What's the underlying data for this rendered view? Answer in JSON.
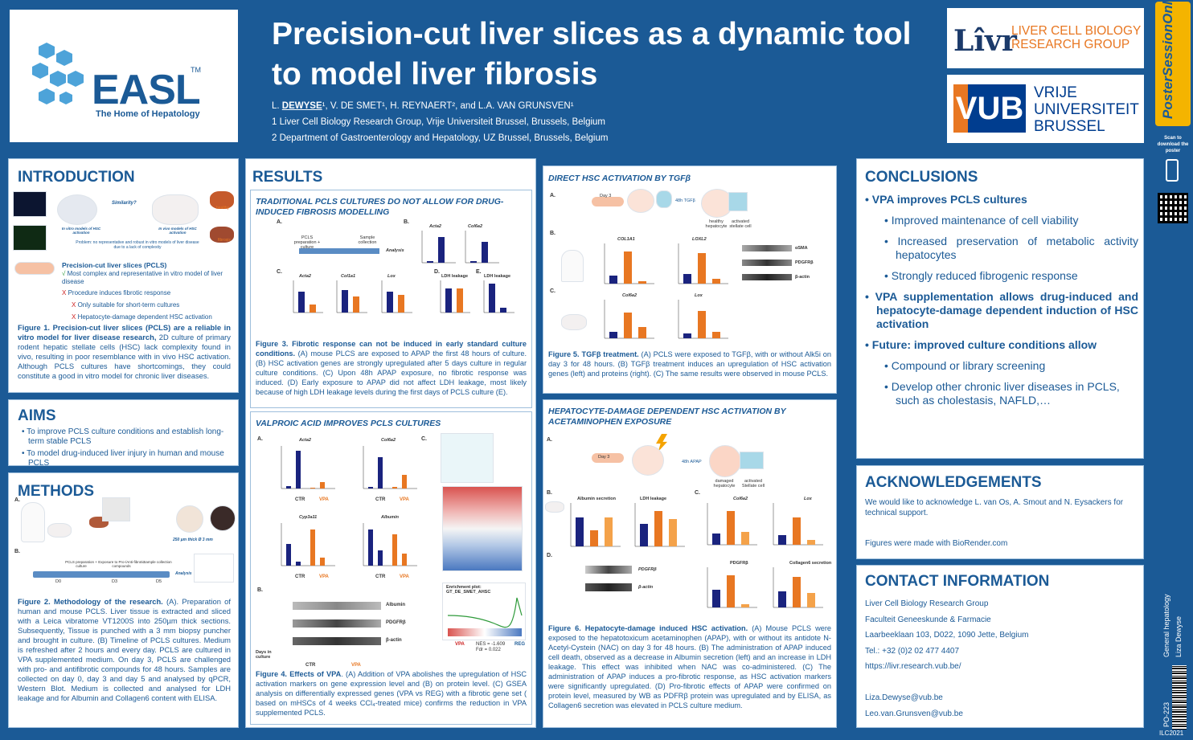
{
  "header": {
    "easl_name": "EASL",
    "easl_tm": "TM",
    "easl_tagline": "The Home of Hepatology",
    "title": "Precision-cut liver slices as a dynamic tool to model liver fibrosis",
    "authors_pre": "L. ",
    "author_main": "DEWYSE",
    "authors_post": "¹, V. DE SMET¹, H. REYNAERT², and L.A. VAN GRUNSVEN¹",
    "affil1": "1 Liver Cell Biology Research Group, Vrije Universiteit Brussel, Brussels, Belgium",
    "affil2": "2 Department of Gastroenterology and Hepatology, UZ Brussel, Brussels, Belgium",
    "livr_logo": "Lîvr",
    "livr_line1": "LIVER CELL BIOLOGY",
    "livr_line2": "RESEARCH GROUP",
    "vub_logo": "VUB",
    "vub_line1": "VRIJE",
    "vub_line2": "UNIVERSITEIT",
    "vub_line3": "BRUSSEL"
  },
  "strip": {
    "poster_session": "PosterSessionOnline",
    "scan_text": "Scan to download the poster",
    "category": "General hepatology",
    "author": "Liza Dewyse",
    "code": "PO-223",
    "event": "ILC2021"
  },
  "introduction": {
    "heading": "INTRODUCTION",
    "fig_similarity": "Similarity?",
    "fig_invitro": "In vitro models of HSC activation",
    "fig_invivo": "In vivo models of HSC activation",
    "fig_healthy": "healthy",
    "fig_fibrosis": "fibrosis",
    "fig_problem": "Problem: no representative and robust in vitro models of liver disease due to a lack of complexity",
    "pcls_title": "Precision-cut liver slices (PCLS)",
    "pcls_check": "√",
    "pcls_pro": "Most complex and representative in vitro model of liver disease",
    "pcls_x": "X",
    "pcls_con1": "Procedure induces fibrotic response",
    "pcls_sub1": "Only suitable for short-term cultures",
    "pcls_sub2": "Hepatocyte-damage dependent HSC activation",
    "caption_bold": "Figure 1. Precision-cut liver slices (PCLS) are a reliable in vitro model for liver disease research,",
    "caption_rest": " 2D culture of primary rodent hepatic stellate cells (HSC) lack complexity found in vivo, resulting in poor resemblance with in vivo HSC activation. Although PCLS cultures have shortcomings, they could constitute a good in vitro model for chronic liver diseases."
  },
  "aims": {
    "heading": "AIMS",
    "items": [
      "To improve PCLS culture conditions and establish long-term stable PCLS",
      "To model drug-induced liver injury in human and mouse PCLS"
    ]
  },
  "methods": {
    "heading": "METHODS",
    "label_a": "A.",
    "label_b": "B.",
    "slice_label": "250 µm thick Ø 3 mm",
    "timeline_1": "PCLS preparation + culture",
    "timeline_2": "Exposure to Pro-/Anti-fibrotic compounds",
    "timeline_3": "Sample collection",
    "timeline_4": "Analysis",
    "d0": "D0",
    "d3": "D3",
    "d5": "D5",
    "caption_bold": "Figure 2. Methodology of the research.",
    "caption_rest": " (A). Preparation of human and mouse PCLS. Liver tissue is extracted and sliced with a Leica vibratome VT1200S into 250µm thick sections. Subsequently, Tissue is punched with a 3 mm biopsy puncher and brought in culture. (B) Timeline of PCLS cultures. Medium is refreshed after 2 hours and every day. PCLS are cultured in VPA supplemented medium. On day 3, PCLS are challenged with pro- and antifibrotic compounds for 48 hours. Samples are collected on day 0, day 3 and day 5 and analysed by qPCR, Western Blot. Medium is collected and analysed for LDH leakage and for Albumin and Collagen6 content with ELISA."
  },
  "results": {
    "heading": "RESULTS",
    "fig3_title": "TRADITIONAL PCLS CULTURES DO NOT ALLOW FOR DRUG-INDUCED FIBROSIS MODELLING",
    "fig3_caption_bold": "Figure 3. Fibrotic response can not be induced in early standard culture conditions.",
    "fig3_caption_rest": " (A) mouse PLCS are exposed to APAP the first 48 hours of culture. (B) HSC activation genes are strongly upregulated after 5 days culture in regular culture conditions. (C) Upon 48h APAP exposure, no fibrotic response was induced. (D) Early exposure to APAP did not affect LDH leakage, most likely because of high LDH leakage levels during the first days of PCLS culture (E).",
    "fig3_panels": {
      "a": "A.",
      "b": "B.",
      "c": "C.",
      "d": "D.",
      "e": "E.",
      "acta2": "Acta2",
      "col6a2": "Col6a2",
      "col1a1": "Col1a1",
      "lox": "Lox",
      "ldh": "LDH leakage",
      "analysis": "Analysis",
      "pcls_prep": "PCLS preparation + culture",
      "sample": "Sample collection"
    },
    "fig4_title": "VALPROIC ACID IMPROVES PCLS CULTURES",
    "fig4_caption_bold": "Figure 4. Effects of VPA",
    "fig4_caption_rest": ". (A) Addition of VPA abolishes the upregulation of HSC activation markers on gene expression level and (B) on protein level. (C) GSEA analysis on differentially expressed genes (VPA vs REG) with a fibrotic gene set ( based on mHSCs of 4 weeks CCl₄-treated mice) confirms the reduction in VPA supplemented PCLS.",
    "fig4_panels": {
      "a": "A.",
      "b": "B.",
      "c": "C.",
      "acta2": "Acta2",
      "col6a2": "Col6a2",
      "cyp": "Cyp3a11",
      "albumin": "Albumin",
      "ctr": "CTR",
      "vpa": "VPA",
      "wb_albumin": "Albumin",
      "wb_pdgfrb": "PDGFRβ",
      "wb_bactin": "β-actin",
      "days": "Days in culture",
      "enrichment": "Enrichment plot: GT_DE_SMET_AHSC",
      "nes": "NES = -1.609",
      "fdr": "Fdr = 0.022",
      "reg": "REG"
    }
  },
  "direct": {
    "title": "DIRECT HSC ACTIVATION BY TGFβ",
    "label_a": "A.",
    "label_b": "B.",
    "label_c": "C.",
    "day3": "Day 3",
    "tgfb": "48h TGFβ",
    "healthy": "healthy hepatocyte",
    "activated": "activated stellate cell",
    "col1a1": "COL1A1",
    "loxl2": "LOXL2",
    "col6a2": "Col6a2",
    "lox": "Lox",
    "wb_asma": "αSMA",
    "wb_pdgfrb": "PDGFRβ",
    "wb_bactin": "β-actin",
    "caption_bold": "Figure 5. TGFβ treatment.",
    "caption_rest": " (A) PCLS were exposed to TGFβ, with or without Alk5i on day 3 for 48 hours. (B) TGFβ treatment induces an upregulation of HSC activation genes (left) and proteins (right). (C) The same results were observed in mouse PCLS."
  },
  "hepdamage": {
    "title": "HEPATOCYTE-DAMAGE DEPENDENT HSC ACTIVATION BY ACETAMINOPHEN EXPOSURE",
    "label_a": "A.",
    "label_b": "B.",
    "label_c": "C.",
    "label_d": "D.",
    "day3": "Day 3",
    "apap": "48h APAP",
    "damaged": "damaged hepatocyte",
    "activated": "activated Stellate cell",
    "albumin": "Albumin secretion",
    "ldh": "LDH leakage",
    "col6a2": "Col6a2",
    "lox": "Lox",
    "pdgfrb": "PDGFRβ",
    "col6sec": "Collagen6 secretion",
    "wb_pdgfrb": "PDGFRβ",
    "wb_bactin": "β-actin",
    "caption_bold": "Figure 6. Hepatocyte-damage induced HSC activation.",
    "caption_rest": " (A) Mouse PCLS were exposed to the hepatotoxicum acetaminophen (APAP), with or without its antidote N-Acetyl-Cystein (NAC) on day 3 for 48 hours. (B) The administration of APAP induced cell death, observed as a decrease in Albumin secretion (left) and an increase in LDH leakage. This effect was inhibited when NAC was co-administered. (C) The administration of APAP induces a pro-fibrotic response, as HSC activation markers were significantly upregulated. (D) Pro-fibrotic effects of APAP were confirmed on protein level, measured by WB as PDFRβ protein was upregulated and by ELISA, as Collagen6 secretion was elevated in PCLS culture medium."
  },
  "conclusions": {
    "heading": "CONCLUSIONS",
    "main1": "VPA improves PCLS cultures",
    "sub1": "Improved maintenance of cell viability",
    "sub2": "Increased preservation of metabolic activity hepatocytes",
    "sub3": "Strongly reduced fibrogenic response",
    "main2": "VPA supplementation allows drug-induced and hepatocyte-damage dependent induction of HSC activation",
    "main3": "Future: improved culture conditions allow",
    "sub4": "Compound or library screening",
    "sub5": "Develop other chronic liver diseases in PCLS, such as cholestasis, NAFLD,…"
  },
  "acknowledgements": {
    "heading": "ACKNOWLEDGEMENTS",
    "text1": "We would like to acknowledge L. van Os, A. Smout and N. Eysackers for technical support.",
    "text2": "Figures were made with BioRender.com"
  },
  "contact": {
    "heading": "CONTACT INFORMATION",
    "line1": "Liver Cell Biology Research Group",
    "line2": "Faculteit Geneeskunde & Farmacie",
    "line3": "Laarbeeklaan 103, D022, 1090 Jette, Belgium",
    "line4": "Tel.: +32 (0)2 02 477 4407",
    "line5": "https://livr.research.vub.be/",
    "email1": "Liza.Dewyse@vub.be",
    "email2": "Leo.van.Grunsven@vub.be"
  },
  "colors": {
    "navy": "#1b5a96",
    "orange": "#e87722",
    "dark_bar": "#1a237e"
  }
}
